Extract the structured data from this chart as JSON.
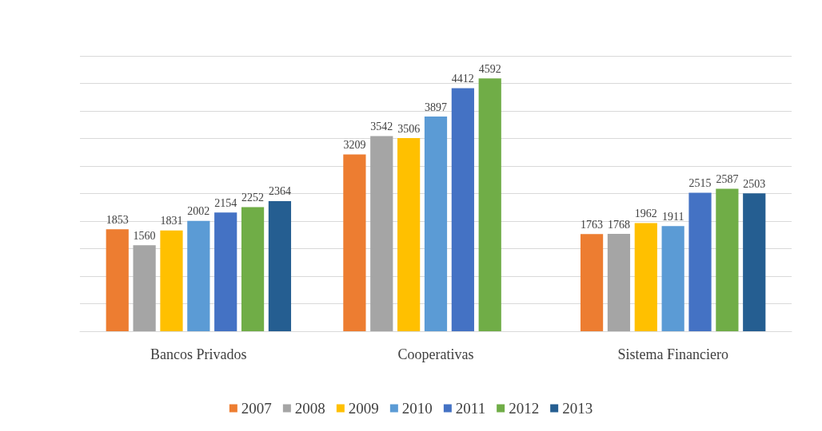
{
  "chart_data": {
    "type": "bar",
    "categories": [
      "Bancos Privados",
      "Cooperativas",
      "Sistema Financiero"
    ],
    "series": [
      {
        "name": "2007",
        "color": "#ed7d31",
        "values": [
          1853,
          3209,
          1763
        ]
      },
      {
        "name": "2008",
        "color": "#a5a5a5",
        "values": [
          1560,
          3542,
          1768
        ]
      },
      {
        "name": "2009",
        "color": "#ffc000",
        "values": [
          1831,
          3506,
          1962
        ]
      },
      {
        "name": "2010",
        "color": "#5b9bd5",
        "values": [
          2002,
          3897,
          1911
        ]
      },
      {
        "name": "2011",
        "color": "#4472c4",
        "values": [
          2154,
          4412,
          2515
        ]
      },
      {
        "name": "2012",
        "color": "#70ad47",
        "values": [
          2252,
          4592,
          2587
        ]
      },
      {
        "name": "2013",
        "color": "#255e91",
        "values": [
          2364,
          null,
          2503
        ]
      }
    ],
    "ylim": [
      0,
      5000
    ],
    "yticks": [
      {
        "value": 0,
        "label": null
      },
      {
        "value": 500,
        "label": null
      },
      {
        "value": 1000,
        "label": null
      },
      {
        "value": 1500,
        "label": null
      },
      {
        "value": 2000,
        "label": null
      },
      {
        "value": 2500,
        "label": null
      },
      {
        "value": 3000,
        "label": null
      },
      {
        "value": 3500,
        "label": null
      },
      {
        "value": 4000,
        "label": null
      },
      {
        "value": 4500,
        "label": null
      },
      {
        "value": 5000,
        "label": null
      }
    ],
    "tick_labels": "x",
    "grid": "y",
    "legend": "bottom",
    "data_labels": true
  }
}
